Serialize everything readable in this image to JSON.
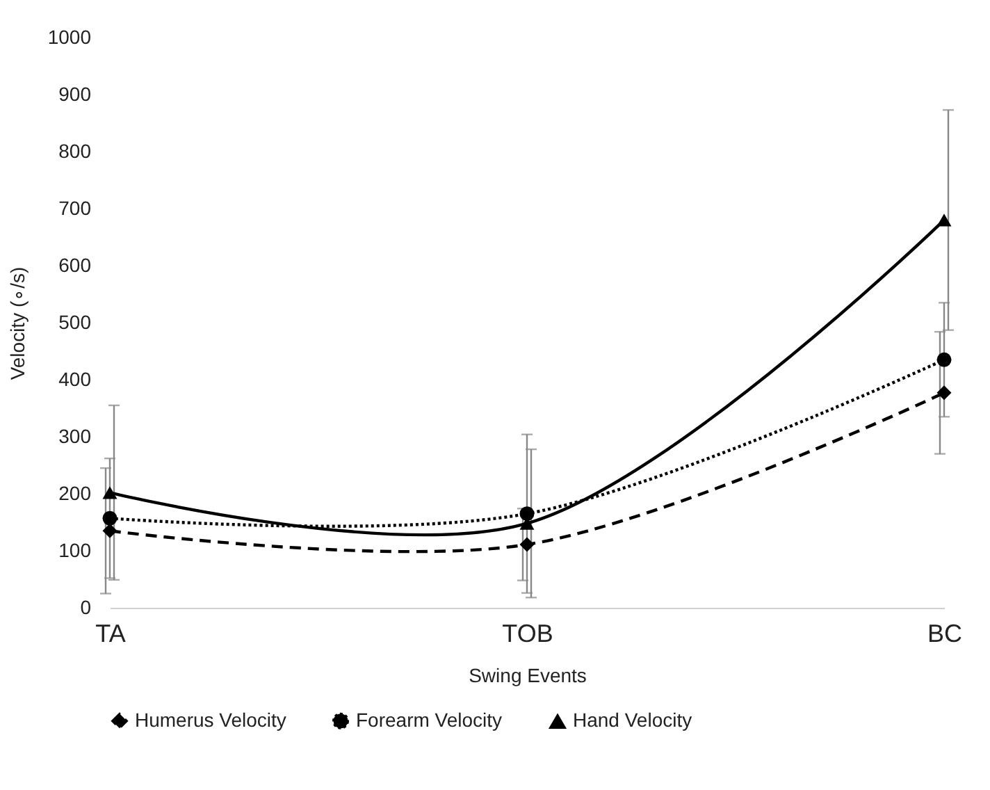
{
  "chart_data": {
    "type": "line",
    "xlabel": "Swing Events",
    "ylabel": "Velocity (∘/s)",
    "categories": [
      "TA",
      "TOB",
      "BC"
    ],
    "series": [
      {
        "name": "Humerus Velocity",
        "color": "#000000",
        "marker": "diamond",
        "line_style": "dashed",
        "values": [
          135,
          111,
          377
        ],
        "errors": [
          110,
          63,
          107
        ]
      },
      {
        "name": "Forearm Velocity",
        "color": "#000000",
        "marker": "circle",
        "line_style": "dotted",
        "values": [
          157,
          165,
          435
        ],
        "errors": [
          105,
          139,
          100
        ]
      },
      {
        "name": "Hand Velocity",
        "color": "#000000",
        "marker": "triangle",
        "line_style": "solid",
        "values": [
          202,
          148,
          680
        ],
        "errors": [
          153,
          130,
          193
        ]
      }
    ],
    "ylim": [
      0,
      1000
    ],
    "yticks": [
      0,
      100,
      200,
      300,
      400,
      500,
      600,
      700,
      800,
      900,
      {
        "value": 1000,
        "label": "1000"
      }
    ],
    "grid": false,
    "legend": "bottom"
  }
}
